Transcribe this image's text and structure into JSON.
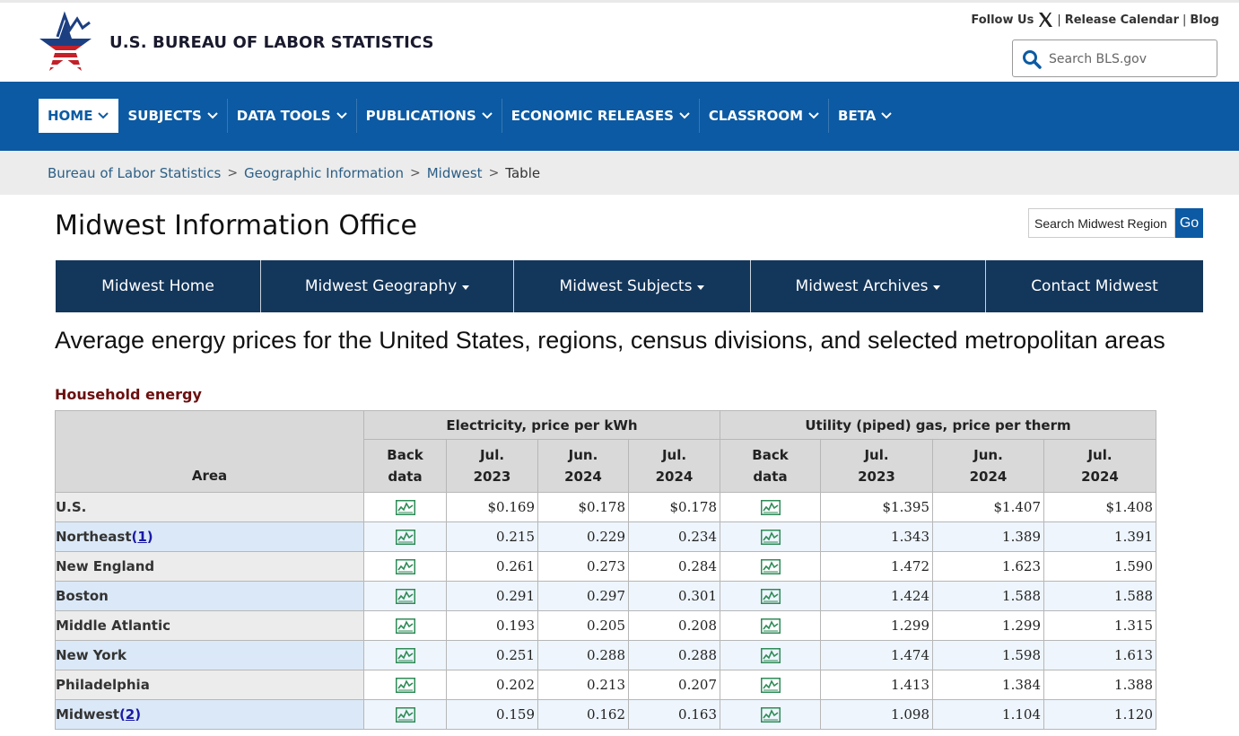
{
  "header": {
    "agency_name": "U.S. BUREAU OF LABOR STATISTICS",
    "follow_us": "Follow Us",
    "release_calendar": "Release Calendar",
    "blog": "Blog",
    "separator": "|",
    "search_placeholder": "Search BLS.gov"
  },
  "nav": {
    "items": [
      {
        "label": "HOME"
      },
      {
        "label": "SUBJECTS"
      },
      {
        "label": "DATA TOOLS"
      },
      {
        "label": "PUBLICATIONS"
      },
      {
        "label": "ECONOMIC RELEASES"
      },
      {
        "label": "CLASSROOM"
      },
      {
        "label": "BETA"
      }
    ]
  },
  "breadcrumb": {
    "items": [
      "Bureau of Labor Statistics",
      "Geographic Information",
      "Midwest"
    ],
    "current": "Table",
    "separator": ">"
  },
  "office": {
    "title": "Midwest Information Office",
    "search_placeholder": "Search Midwest Region",
    "search_button": "Go",
    "nav": [
      "Midwest Home",
      "Midwest Geography",
      "Midwest Subjects",
      "Midwest Archives",
      "Contact Midwest"
    ]
  },
  "page": {
    "heading": "Average energy prices for the United States, regions, census divisions, and selected metropolitan areas",
    "section": "Household energy"
  },
  "table": {
    "area_header": "Area",
    "groups": [
      "Electricity, price per kWh",
      "Utility (piped) gas, price per therm"
    ],
    "back_data_header": [
      "Back",
      "data"
    ],
    "period_headers": [
      [
        "Jul.",
        "2023"
      ],
      [
        "Jun.",
        "2024"
      ],
      [
        "Jul.",
        "2024"
      ]
    ],
    "rows": [
      {
        "area": "U.S.",
        "ref": "",
        "elec": [
          "$0.169",
          "$0.178",
          "$0.178"
        ],
        "gas": [
          "$1.395",
          "$1.407",
          "$1.408"
        ]
      },
      {
        "area": "Northeast",
        "ref": "1",
        "elec": [
          "0.215",
          "0.229",
          "0.234"
        ],
        "gas": [
          "1.343",
          "1.389",
          "1.391"
        ]
      },
      {
        "area": "New England",
        "ref": "",
        "elec": [
          "0.261",
          "0.273",
          "0.284"
        ],
        "gas": [
          "1.472",
          "1.623",
          "1.590"
        ]
      },
      {
        "area": "Boston",
        "ref": "",
        "elec": [
          "0.291",
          "0.297",
          "0.301"
        ],
        "gas": [
          "1.424",
          "1.588",
          "1.588"
        ]
      },
      {
        "area": "Middle Atlantic",
        "ref": "",
        "elec": [
          "0.193",
          "0.205",
          "0.208"
        ],
        "gas": [
          "1.299",
          "1.299",
          "1.315"
        ]
      },
      {
        "area": "New York",
        "ref": "",
        "elec": [
          "0.251",
          "0.288",
          "0.288"
        ],
        "gas": [
          "1.474",
          "1.598",
          "1.613"
        ]
      },
      {
        "area": "Philadelphia",
        "ref": "",
        "elec": [
          "0.202",
          "0.213",
          "0.207"
        ],
        "gas": [
          "1.413",
          "1.384",
          "1.388"
        ]
      },
      {
        "area": "Midwest",
        "ref": "2",
        "elec": [
          "0.159",
          "0.162",
          "0.163"
        ],
        "gas": [
          "1.098",
          "1.104",
          "1.120"
        ]
      }
    ]
  },
  "colors": {
    "nav_blue": "#0b5aa3",
    "office_nav": "#13365b",
    "section_red": "#6b0f0f",
    "chart_icon_green": "#2e8b57"
  }
}
